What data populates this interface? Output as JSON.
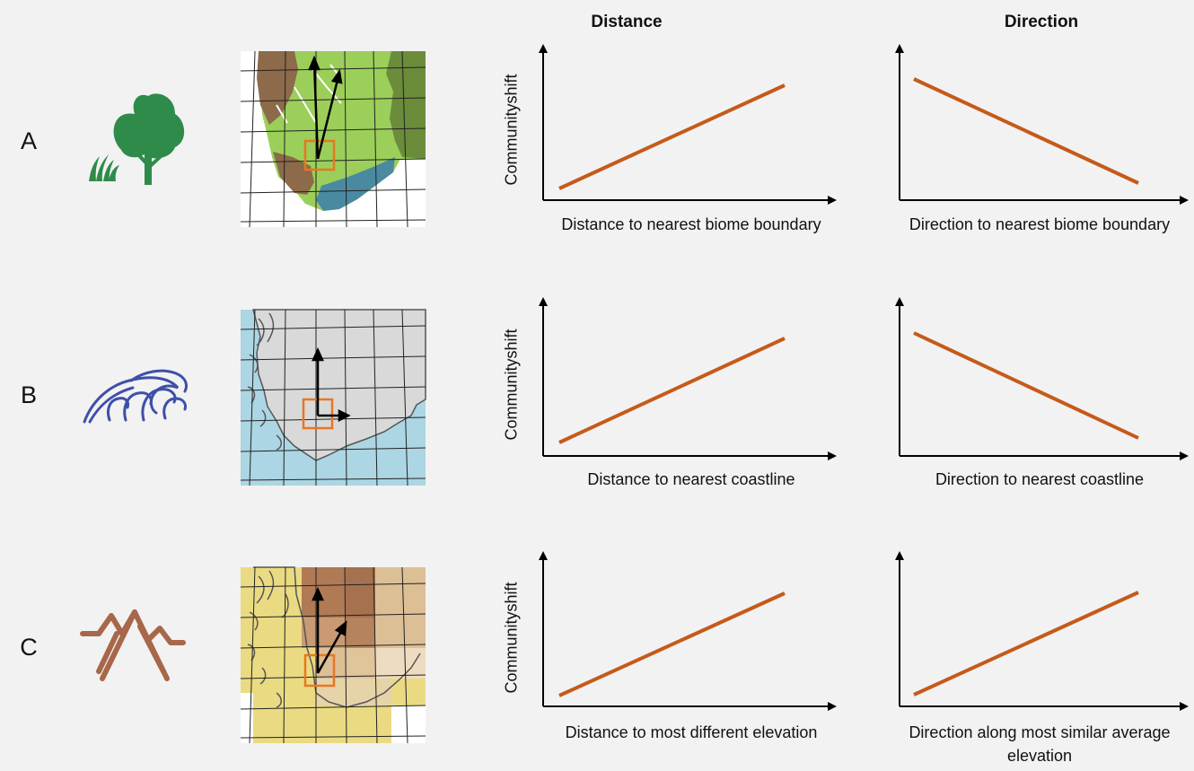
{
  "headers": {
    "distance": "Distance",
    "direction": "Direction"
  },
  "rows": [
    {
      "letter": "A",
      "icon": "tree-grass-icon",
      "map": "biome-map",
      "y_label": "Communityshift",
      "distance_xlabel": "Distance to nearest biome boundary",
      "direction_xlabel": "Direction to nearest biome boundary",
      "distance_trend": "increasing",
      "direction_trend": "decreasing"
    },
    {
      "letter": "B",
      "icon": "wave-icon",
      "map": "coastline-map",
      "y_label": "Communityshift",
      "distance_xlabel": "Distance to nearest coastline",
      "direction_xlabel": "Direction to nearest coastline",
      "distance_trend": "increasing",
      "direction_trend": "decreasing"
    },
    {
      "letter": "C",
      "icon": "mountain-icon",
      "map": "elevation-map",
      "y_label": "Communityshift",
      "distance_xlabel": "Distance to most different elevation",
      "direction_xlabel": "Direction along most similar average elevation",
      "distance_trend": "increasing",
      "direction_trend": "increasing"
    }
  ],
  "colors": {
    "trend_line": "#c55a1a",
    "tree": "#2e8b4a",
    "wave": "#3f4fa8",
    "mountain": "#a8674a",
    "focus_cell": "#e87722",
    "biome_light_green": "#9bcf5a",
    "biome_dark_green": "#6b8c3a",
    "biome_brown": "#8c6a4a",
    "biome_teal": "#4a8aa0",
    "sea": "#acd6e3",
    "land_grey": "#d9d9d9",
    "elev_low": "#eadb82",
    "elev_mid": "#dcbf95",
    "elev_high": "#a6714f"
  }
}
